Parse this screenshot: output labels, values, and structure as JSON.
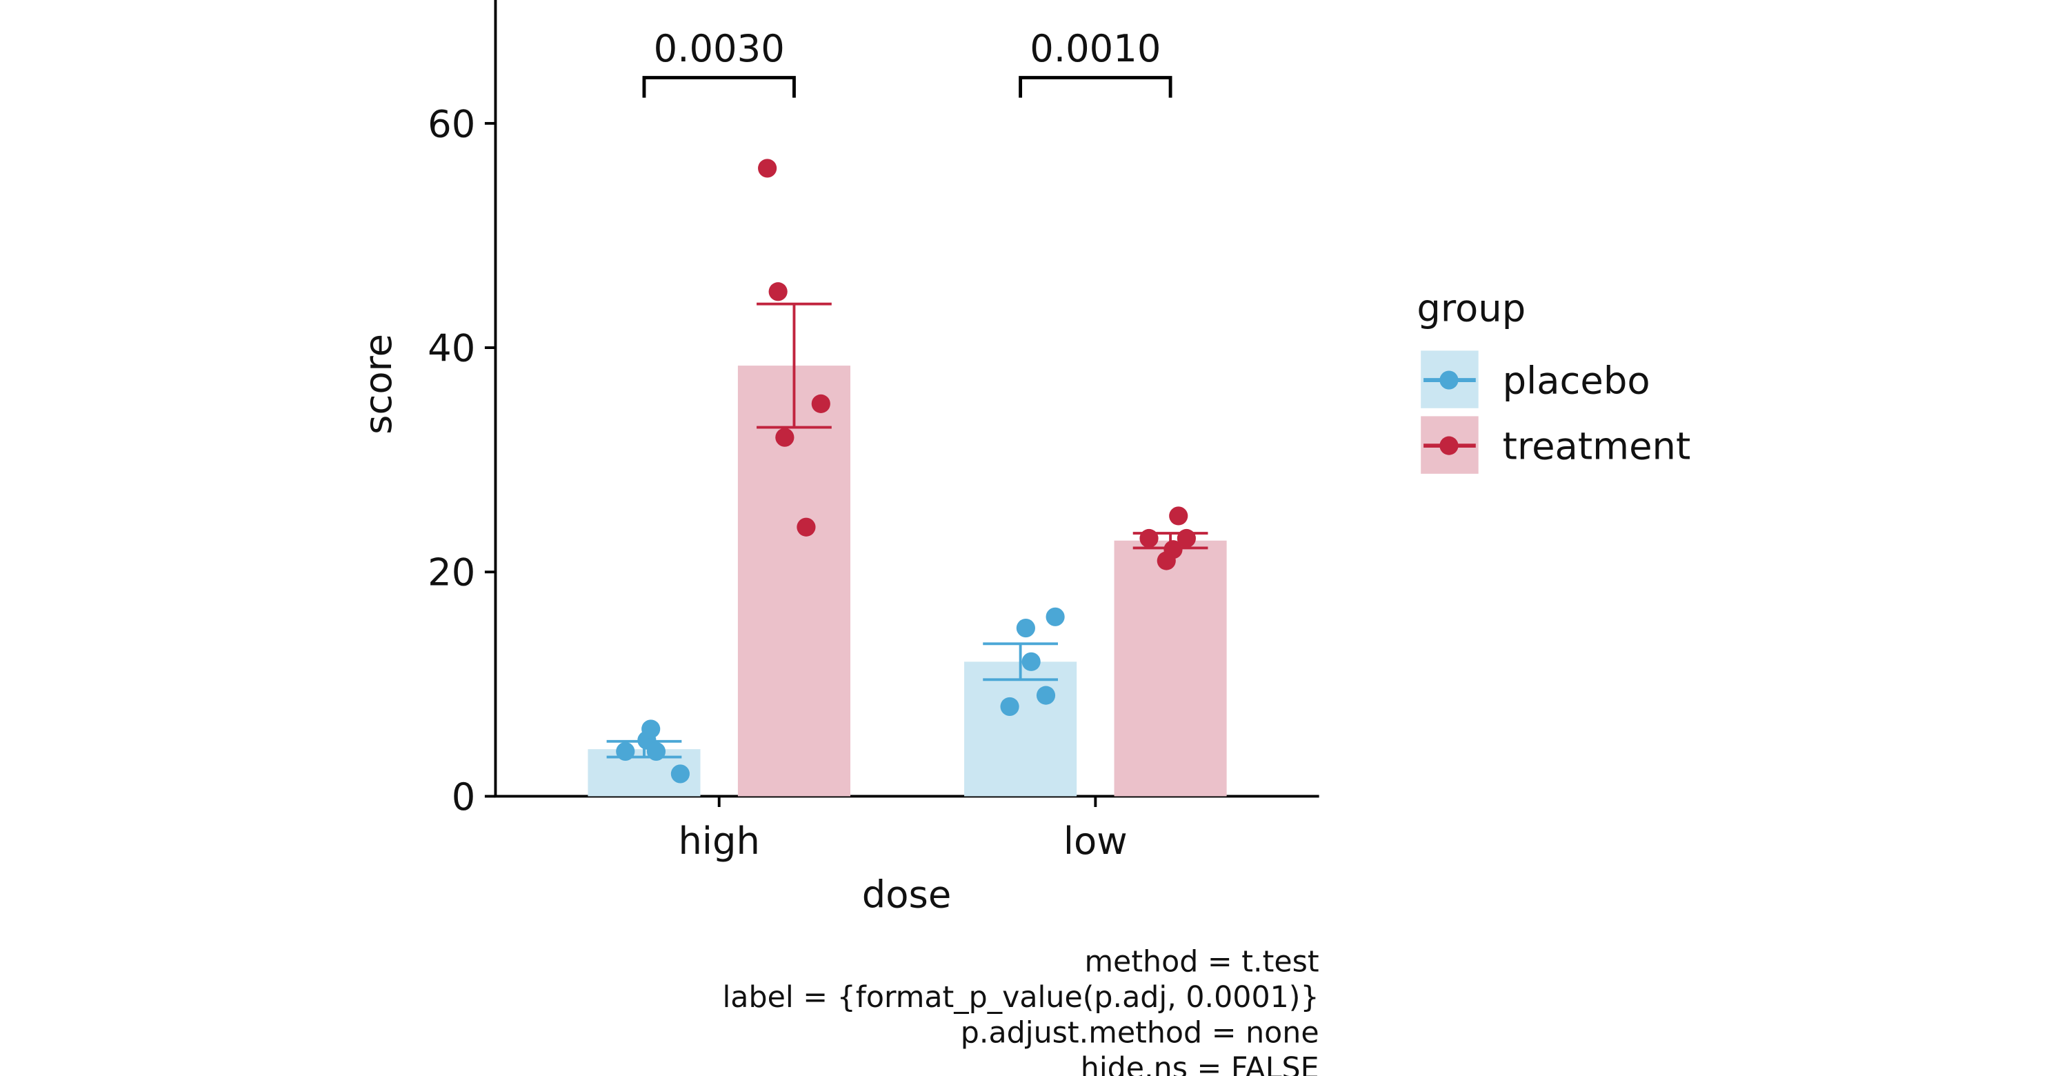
{
  "chart_data": {
    "type": "bar",
    "x_label": "dose",
    "y_label": "score",
    "categories": [
      "high",
      "low"
    ],
    "series": [
      {
        "name": "placebo",
        "color": "#4ba7d6",
        "bar_color": "#cbe6f2",
        "values": [
          4.2,
          12
        ],
        "errors": [
          0.7,
          1.6
        ],
        "points": [
          [
            4,
            5,
            6,
            4,
            2
          ],
          [
            15,
            16,
            12,
            8,
            9
          ]
        ]
      },
      {
        "name": "treatment",
        "color": "#c1243e",
        "bar_color": "#ebc1ca",
        "values": [
          38.4,
          22.8
        ],
        "errors": [
          5.5,
          0.66
        ],
        "points": [
          [
            56,
            45,
            35,
            32,
            24
          ],
          [
            23,
            25,
            22,
            21,
            23
          ]
        ]
      }
    ],
    "ylim": [
      0,
      71
    ],
    "yticks": [
      0,
      20,
      40,
      60
    ],
    "legend_title": "group",
    "comparisons": [
      {
        "category": 0,
        "label": "0.0030"
      },
      {
        "category": 1,
        "label": "0.0010"
      }
    ],
    "footnote": [
      "method = t.test",
      "label = {format_p_value(p.adj, 0.0001)}",
      "p.adjust.method = none",
      "hide.ns = FALSE"
    ]
  }
}
